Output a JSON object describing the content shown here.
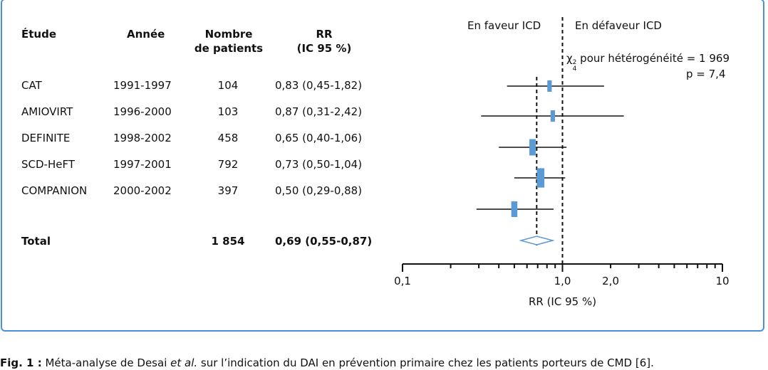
{
  "columns": {
    "study": "Étude",
    "year": "Année",
    "patients": [
      "Nombre",
      "de patients"
    ],
    "rr": [
      "RR",
      "(IC 95 %)"
    ]
  },
  "rows": [
    {
      "study": "CAT",
      "year": "1991-1997",
      "patients": "104",
      "rr": "0,83 (0,45-1,82)"
    },
    {
      "study": "AMIOVIRT",
      "year": "1996-2000",
      "patients": "103",
      "rr": "0,87 (0,31-2,42)"
    },
    {
      "study": "DEFINITE",
      "year": "1998-2002",
      "patients": "458",
      "rr": "0,65 (0,40-1,06)"
    },
    {
      "study": "SCD-HeFT",
      "year": "1997-2001",
      "patients": "792",
      "rr": "0,73 (0,50-1,04)"
    },
    {
      "study": "COMPANION",
      "year": "2000-2002",
      "patients": "397",
      "rr": "0,50 (0,29-0,88)"
    }
  ],
  "total": {
    "label": "Total",
    "patients": "1 854",
    "rr": "0,69 (0,55-0,87)"
  },
  "favour_label": "En faveur ICD",
  "disfavour_label": "En défaveur ICD",
  "heterogeneity": {
    "chi_symbol": "χ",
    "chi_sub": "4",
    "chi_sup": "2",
    "text": " pour hétérogénéité = 1 969",
    "p": "p = 7,4"
  },
  "axis": {
    "title": "RR (IC 95 %)",
    "tick_labels": [
      "0,1",
      "1,0",
      "2,0",
      "10"
    ]
  },
  "caption": {
    "fig": "Fig. 1 :",
    "text_before": " Méta-analyse de Desai ",
    "italic": "et al.",
    "text_after": " sur l’indication du DAI en prévention primaire chez les patients porteurs de CMD [6]."
  },
  "colors": {
    "marker": "#5b9bd5",
    "frame": "#4a90d9",
    "line": "#111111"
  },
  "chart_data": {
    "type": "forest",
    "scale": "log",
    "xlim": [
      0.1,
      10
    ],
    "xticks_labeled": [
      0.1,
      1.0,
      2.0,
      10
    ],
    "reference_line": 1.0,
    "pooled_line": 0.69,
    "studies": [
      {
        "name": "CAT",
        "rr": 0.83,
        "low": 0.45,
        "high": 1.82,
        "weight": 104
      },
      {
        "name": "AMIOVIRT",
        "rr": 0.87,
        "low": 0.31,
        "high": 2.42,
        "weight": 103
      },
      {
        "name": "DEFINITE",
        "rr": 0.65,
        "low": 0.4,
        "high": 1.06,
        "weight": 458
      },
      {
        "name": "SCD-HeFT",
        "rr": 0.73,
        "low": 0.5,
        "high": 1.04,
        "weight": 792
      },
      {
        "name": "COMPANION",
        "rr": 0.5,
        "low": 0.29,
        "high": 0.88,
        "weight": 397
      }
    ],
    "pooled": {
      "rr": 0.69,
      "low": 0.55,
      "high": 0.87
    }
  }
}
